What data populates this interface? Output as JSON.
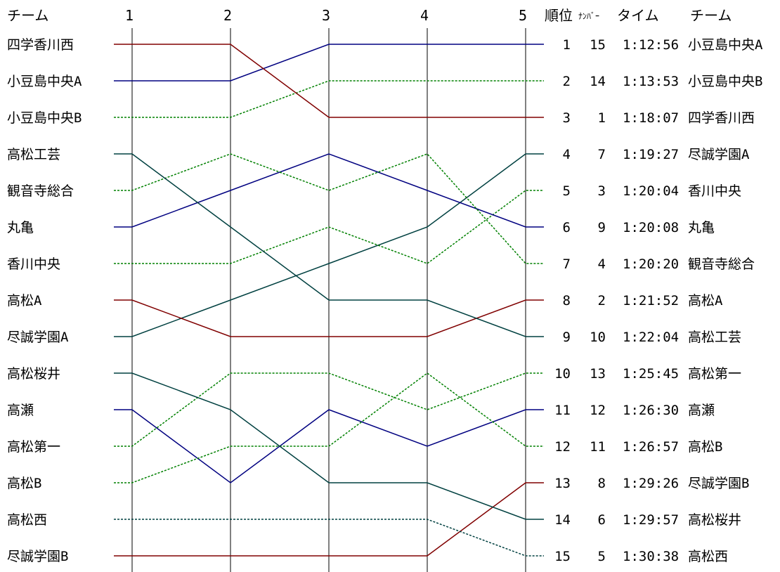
{
  "chart_data": {
    "type": "line",
    "headers": {
      "team_left": "チーム",
      "rank": "順位",
      "bib": "ﾅﾝﾊﾞｰ",
      "time": "タイム",
      "team_right": "チーム"
    },
    "x": [
      "1",
      "2",
      "3",
      "4",
      "5"
    ],
    "start_order": [
      "四学香川西",
      "小豆島中央A",
      "小豆島中央B",
      "高松工芸",
      "観音寺総合",
      "丸亀",
      "香川中央",
      "高松A",
      "尽誠学園A",
      "高松桜井",
      "高瀬",
      "高松第一",
      "高松B",
      "高松西",
      "尽誠学園B"
    ],
    "series": [
      {
        "name": "小豆島中央A",
        "color": "#000080",
        "dash": false,
        "ranks": [
          2,
          2,
          1,
          1,
          1
        ],
        "final_rank": 1
      },
      {
        "name": "小豆島中央B",
        "color": "#008000",
        "dash": true,
        "ranks": [
          3,
          3,
          2,
          2,
          2
        ],
        "final_rank": 2
      },
      {
        "name": "四学香川西",
        "color": "#800000",
        "dash": false,
        "ranks": [
          1,
          1,
          3,
          3,
          3
        ],
        "final_rank": 3
      },
      {
        "name": "尽誠学園A",
        "color": "#004040",
        "dash": false,
        "ranks": [
          9,
          8,
          7,
          6,
          4
        ],
        "final_rank": 4
      },
      {
        "name": "香川中央",
        "color": "#008000",
        "dash": true,
        "ranks": [
          7,
          7,
          6,
          7,
          5
        ],
        "final_rank": 5
      },
      {
        "name": "丸亀",
        "color": "#000080",
        "dash": false,
        "ranks": [
          6,
          5,
          4,
          5,
          6
        ],
        "final_rank": 6
      },
      {
        "name": "観音寺総合",
        "color": "#008000",
        "dash": true,
        "ranks": [
          5,
          4,
          5,
          4,
          7
        ],
        "final_rank": 7
      },
      {
        "name": "高松A",
        "color": "#800000",
        "dash": false,
        "ranks": [
          8,
          9,
          9,
          9,
          8
        ],
        "final_rank": 8
      },
      {
        "name": "高松工芸",
        "color": "#004040",
        "dash": false,
        "ranks": [
          4,
          6,
          8,
          8,
          9
        ],
        "final_rank": 9
      },
      {
        "name": "高松第一",
        "color": "#008000",
        "dash": true,
        "ranks": [
          12,
          10,
          10,
          11,
          10
        ],
        "final_rank": 10
      },
      {
        "name": "高瀬",
        "color": "#000080",
        "dash": false,
        "ranks": [
          11,
          13,
          11,
          12,
          11
        ],
        "final_rank": 11
      },
      {
        "name": "高松B",
        "color": "#008000",
        "dash": true,
        "ranks": [
          13,
          12,
          12,
          10,
          12
        ],
        "final_rank": 12
      },
      {
        "name": "尽誠学園B",
        "color": "#800000",
        "dash": false,
        "ranks": [
          15,
          15,
          15,
          15,
          13
        ],
        "final_rank": 13
      },
      {
        "name": "高松桜井",
        "color": "#004040",
        "dash": false,
        "ranks": [
          10,
          11,
          13,
          13,
          14
        ],
        "final_rank": 14
      },
      {
        "name": "高松西",
        "color": "#004040",
        "dash": true,
        "ranks": [
          14,
          14,
          14,
          14,
          15
        ],
        "final_rank": 15
      }
    ],
    "results": [
      {
        "rank": "1",
        "bib": "15",
        "time": "1:12:56",
        "team": "小豆島中央A"
      },
      {
        "rank": "2",
        "bib": "14",
        "time": "1:13:53",
        "team": "小豆島中央B"
      },
      {
        "rank": "3",
        "bib": "1",
        "time": "1:18:07",
        "team": "四学香川西"
      },
      {
        "rank": "4",
        "bib": "7",
        "time": "1:19:27",
        "team": "尽誠学園A"
      },
      {
        "rank": "5",
        "bib": "3",
        "time": "1:20:04",
        "team": "香川中央"
      },
      {
        "rank": "6",
        "bib": "9",
        "time": "1:20:08",
        "team": "丸亀"
      },
      {
        "rank": "7",
        "bib": "4",
        "time": "1:20:20",
        "team": "観音寺総合"
      },
      {
        "rank": "8",
        "bib": "2",
        "time": "1:21:52",
        "team": "高松A"
      },
      {
        "rank": "9",
        "bib": "10",
        "time": "1:22:04",
        "team": "高松工芸"
      },
      {
        "rank": "10",
        "bib": "13",
        "time": "1:25:45",
        "team": "高松第一"
      },
      {
        "rank": "11",
        "bib": "12",
        "time": "1:26:30",
        "team": "高瀬"
      },
      {
        "rank": "12",
        "bib": "11",
        "time": "1:26:57",
        "team": "高松B"
      },
      {
        "rank": "13",
        "bib": "8",
        "time": "1:29:26",
        "team": "尽誠学園B"
      },
      {
        "rank": "14",
        "bib": "6",
        "time": "1:29:57",
        "team": "高松桜井"
      },
      {
        "rank": "15",
        "bib": "5",
        "time": "1:30:38",
        "team": "高松西"
      }
    ],
    "ylim": [
      1,
      15
    ],
    "grid": "vertical lines at each leg",
    "legend": "none"
  }
}
